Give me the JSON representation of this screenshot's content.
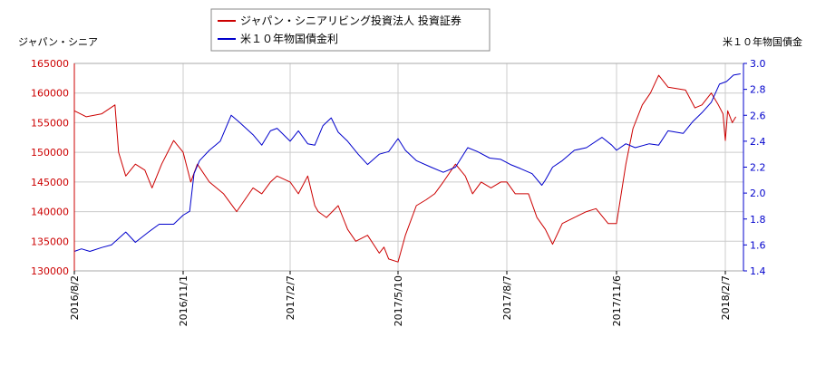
{
  "chart_data": {
    "type": "line",
    "left_axis_label": "ジャパン・シニア",
    "right_axis_label": "米１０年物国債金",
    "legend": {
      "placement": "top-center",
      "entries": [
        {
          "name": "ジャパン・シニアリビング投資法人 投資証券",
          "color": "#cc0000"
        },
        {
          "name": "米１０年物国債金利",
          "color": "#0000cc"
        }
      ]
    },
    "x_ticks": [
      "2016/8/2",
      "2016/11/1",
      "2017/2/7",
      "2017/5/10",
      "2017/8/7",
      "2017/11/6",
      "2018/2/7"
    ],
    "y_left": {
      "min": 130000,
      "max": 165000,
      "ticks": [
        "130000",
        "135000",
        "140000",
        "145000",
        "150000",
        "155000",
        "160000",
        "165000"
      ]
    },
    "y_right": {
      "min": 1.4,
      "max": 3.0,
      "ticks": [
        "1.4",
        "1.6",
        "1.8",
        "2.0",
        "2.2",
        "2.4",
        "2.6",
        "2.8",
        "3.0"
      ]
    },
    "grid": true,
    "series": [
      {
        "name": "ジャパン・シニアリビング投資法人 投資証券",
        "axis": "left",
        "color": "#cc0000",
        "x": [
          "2016-08-02",
          "2016-08-12",
          "2016-08-25",
          "2016-09-05",
          "2016-09-08",
          "2016-09-14",
          "2016-09-22",
          "2016-09-30",
          "2016-10-06",
          "2016-10-14",
          "2016-10-24",
          "2016-11-01",
          "2016-11-08",
          "2016-11-14",
          "2016-11-25",
          "2016-12-08",
          "2016-12-20",
          "2017-01-04",
          "2017-01-12",
          "2017-01-20",
          "2017-01-26",
          "2017-02-07",
          "2017-02-14",
          "2017-02-22",
          "2017-02-28",
          "2017-03-03",
          "2017-03-10",
          "2017-03-20",
          "2017-03-28",
          "2017-04-04",
          "2017-04-14",
          "2017-04-24",
          "2017-04-28",
          "2017-05-02",
          "2017-05-10",
          "2017-05-16",
          "2017-05-25",
          "2017-06-02",
          "2017-06-09",
          "2017-06-16",
          "2017-06-26",
          "2017-07-04",
          "2017-07-10",
          "2017-07-17",
          "2017-07-25",
          "2017-08-02",
          "2017-08-07",
          "2017-08-14",
          "2017-08-25",
          "2017-09-01",
          "2017-09-08",
          "2017-09-14",
          "2017-09-22",
          "2017-10-02",
          "2017-10-12",
          "2017-10-20",
          "2017-10-30",
          "2017-11-06",
          "2017-11-14",
          "2017-11-20",
          "2017-11-28",
          "2017-12-05",
          "2017-12-12",
          "2017-12-20",
          "2018-01-04",
          "2018-01-12",
          "2018-01-18",
          "2018-01-26",
          "2018-02-01",
          "2018-02-05",
          "2018-02-07",
          "2018-02-09",
          "2018-02-13",
          "2018-02-16"
        ],
        "values": [
          157000,
          156000,
          156500,
          158000,
          150000,
          146000,
          148000,
          147000,
          144000,
          148000,
          152000,
          150000,
          145000,
          148000,
          145000,
          143000,
          140000,
          144000,
          143000,
          145000,
          146000,
          145000,
          143000,
          146000,
          141000,
          140000,
          139000,
          141000,
          137000,
          135000,
          136000,
          133000,
          134000,
          132000,
          131500,
          136000,
          141000,
          142000,
          143000,
          145000,
          148000,
          146000,
          143000,
          145000,
          144000,
          145000,
          145000,
          143000,
          143000,
          139000,
          137000,
          134500,
          138000,
          139000,
          140000,
          140500,
          138000,
          138000,
          148000,
          154000,
          158000,
          160000,
          163000,
          161000,
          160500,
          157500,
          158000,
          160000,
          158000,
          156500,
          152000,
          157000,
          155000,
          156000
        ]
      },
      {
        "name": "米１０年物国債金利",
        "axis": "right",
        "color": "#0000cc",
        "x": [
          "2016-08-02",
          "2016-08-08",
          "2016-08-15",
          "2016-08-25",
          "2016-09-02",
          "2016-09-08",
          "2016-09-14",
          "2016-09-22",
          "2016-10-03",
          "2016-10-12",
          "2016-10-24",
          "2016-11-01",
          "2016-11-07",
          "2016-11-11",
          "2016-11-16",
          "2016-11-25",
          "2016-12-05",
          "2016-12-15",
          "2016-12-22",
          "2017-01-04",
          "2017-01-12",
          "2017-01-20",
          "2017-01-26",
          "2017-02-07",
          "2017-02-14",
          "2017-02-22",
          "2017-02-28",
          "2017-03-07",
          "2017-03-14",
          "2017-03-20",
          "2017-03-28",
          "2017-04-06",
          "2017-04-14",
          "2017-04-24",
          "2017-05-02",
          "2017-05-10",
          "2017-05-16",
          "2017-05-25",
          "2017-06-06",
          "2017-06-16",
          "2017-06-26",
          "2017-07-06",
          "2017-07-14",
          "2017-07-24",
          "2017-08-02",
          "2017-08-10",
          "2017-08-18",
          "2017-08-28",
          "2017-09-05",
          "2017-09-08",
          "2017-09-14",
          "2017-09-22",
          "2017-10-02",
          "2017-10-12",
          "2017-10-25",
          "2017-11-02",
          "2017-11-06",
          "2017-11-14",
          "2017-11-22",
          "2017-12-04",
          "2017-12-12",
          "2017-12-20",
          "2018-01-02",
          "2018-01-10",
          "2018-01-18",
          "2018-01-26",
          "2018-02-02",
          "2018-02-08",
          "2018-02-14",
          "2018-02-20"
        ],
        "values": [
          1.55,
          1.57,
          1.55,
          1.58,
          1.6,
          1.65,
          1.7,
          1.62,
          1.7,
          1.76,
          1.76,
          1.83,
          1.86,
          2.15,
          2.25,
          2.33,
          2.4,
          2.6,
          2.55,
          2.45,
          2.37,
          2.48,
          2.5,
          2.4,
          2.48,
          2.38,
          2.37,
          2.52,
          2.58,
          2.47,
          2.4,
          2.3,
          2.22,
          2.3,
          2.32,
          2.42,
          2.33,
          2.25,
          2.2,
          2.16,
          2.2,
          2.35,
          2.32,
          2.27,
          2.26,
          2.22,
          2.19,
          2.15,
          2.06,
          2.1,
          2.2,
          2.25,
          2.33,
          2.35,
          2.43,
          2.37,
          2.33,
          2.38,
          2.35,
          2.38,
          2.37,
          2.48,
          2.46,
          2.55,
          2.62,
          2.7,
          2.84,
          2.86,
          2.91,
          2.92
        ]
      }
    ]
  }
}
